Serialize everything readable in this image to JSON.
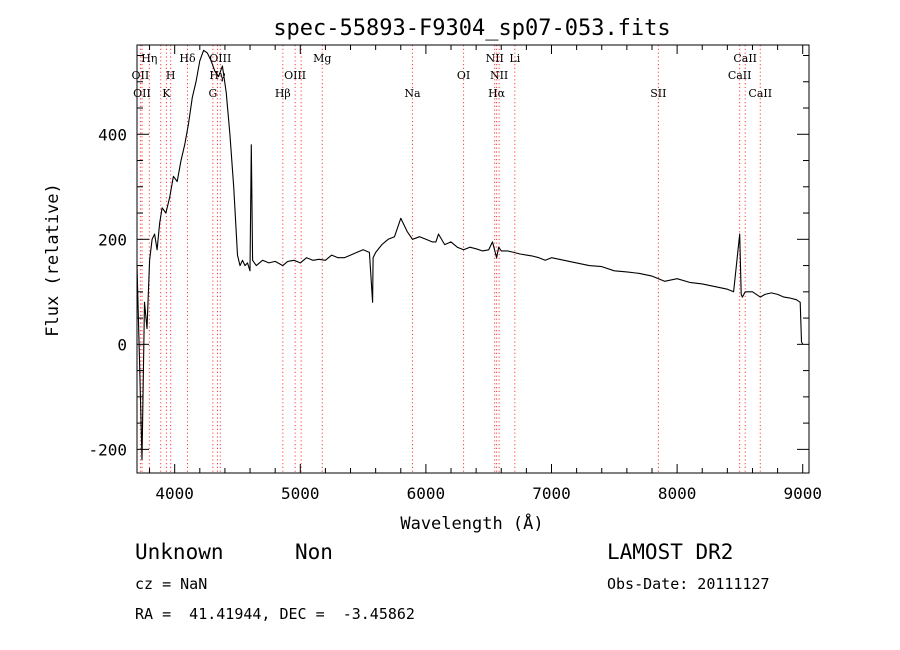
{
  "chart_data": {
    "type": "line",
    "title": "spec-55893-F9304_sp07-053.fits",
    "xlabel": "Wavelength (Å)",
    "ylabel": "Flux (relative)",
    "xlim": [
      3700,
      9050
    ],
    "ylim": [
      -245,
      570
    ],
    "x_ticks": [
      4000,
      5000,
      6000,
      7000,
      8000,
      9000
    ],
    "y_ticks": [
      -200,
      0,
      200,
      400
    ],
    "x_minor_step": 200,
    "y_minor_step": 50,
    "grid": false,
    "series": [
      {
        "color": "#000000",
        "x": [
          3700,
          3720,
          3740,
          3760,
          3780,
          3800,
          3820,
          3840,
          3860,
          3880,
          3900,
          3930,
          3960,
          3990,
          4020,
          4050,
          4080,
          4110,
          4140,
          4170,
          4200,
          4230,
          4260,
          4290,
          4320,
          4350,
          4380,
          4410,
          4440,
          4470,
          4500,
          4520,
          4540,
          4560,
          4580,
          4600,
          4610,
          4620,
          4650,
          4700,
          4750,
          4800,
          4861,
          4900,
          4950,
          5000,
          5050,
          5100,
          5150,
          5200,
          5250,
          5300,
          5350,
          5400,
          5450,
          5500,
          5550,
          5576,
          5580,
          5600,
          5650,
          5700,
          5750,
          5800,
          5850,
          5893,
          5950,
          6000,
          6050,
          6080,
          6100,
          6150,
          6200,
          6250,
          6300,
          6350,
          6400,
          6450,
          6500,
          6530,
          6563,
          6580,
          6600,
          6650,
          6700,
          6750,
          6800,
          6850,
          6900,
          6950,
          7000,
          7100,
          7200,
          7300,
          7400,
          7500,
          7600,
          7700,
          7800,
          7900,
          8000,
          8100,
          8200,
          8300,
          8400,
          8450,
          8498,
          8510,
          8520,
          8542,
          8600,
          8662,
          8700,
          8750,
          8800,
          8850,
          8900,
          8950,
          8980,
          8990,
          9000
        ],
        "y": [
          150,
          -30,
          -220,
          80,
          30,
          160,
          200,
          210,
          180,
          230,
          260,
          250,
          280,
          320,
          310,
          350,
          380,
          420,
          470,
          500,
          540,
          560,
          555,
          540,
          520,
          510,
          530,
          480,
          400,
          300,
          170,
          150,
          160,
          150,
          155,
          140,
          380,
          160,
          150,
          160,
          155,
          158,
          150,
          158,
          160,
          155,
          165,
          160,
          162,
          160,
          170,
          165,
          165,
          170,
          175,
          180,
          175,
          80,
          165,
          175,
          190,
          200,
          205,
          240,
          215,
          200,
          205,
          200,
          195,
          195,
          210,
          190,
          195,
          185,
          180,
          185,
          182,
          178,
          180,
          195,
          165,
          185,
          178,
          178,
          175,
          172,
          170,
          168,
          165,
          160,
          165,
          160,
          155,
          150,
          148,
          140,
          138,
          135,
          130,
          120,
          125,
          118,
          115,
          110,
          105,
          100,
          210,
          95,
          90,
          100,
          100,
          90,
          95,
          98,
          95,
          90,
          88,
          85,
          80,
          5,
          0
        ]
      }
    ],
    "annotations": {
      "line_color": "#ff3b3b",
      "lines": [
        {
          "x": 3727,
          "label": "OII",
          "row": 2
        },
        {
          "x": 3740,
          "label": "OII",
          "row": 3
        },
        {
          "x": 3798,
          "label": "Hη",
          "row": 1
        },
        {
          "x": 3889,
          "label": "",
          "row": 0
        },
        {
          "x": 3934,
          "label": "K",
          "row": 3
        },
        {
          "x": 3968,
          "label": "H",
          "row": 2
        },
        {
          "x": 4102,
          "label": "Hδ",
          "row": 1
        },
        {
          "x": 4304,
          "label": "G",
          "row": 3
        },
        {
          "x": 4341,
          "label": "Hγ",
          "row": 2
        },
        {
          "x": 4363,
          "label": "OIII",
          "row": 1
        },
        {
          "x": 4861,
          "label": "Hβ",
          "row": 3
        },
        {
          "x": 4959,
          "label": "OIII",
          "row": 2
        },
        {
          "x": 5007,
          "label": "",
          "row": 0
        },
        {
          "x": 5175,
          "label": "Mg",
          "row": 1
        },
        {
          "x": 5893,
          "label": "Na",
          "row": 3
        },
        {
          "x": 6300,
          "label": "OI",
          "row": 2
        },
        {
          "x": 6548,
          "label": "NII",
          "row": 1
        },
        {
          "x": 6563,
          "label": "Hα",
          "row": 3
        },
        {
          "x": 6583,
          "label": "NII",
          "row": 2
        },
        {
          "x": 6708,
          "label": "Li",
          "row": 1
        },
        {
          "x": 7851,
          "label": "SII",
          "row": 3
        },
        {
          "x": 8498,
          "label": "CaII",
          "row": 2
        },
        {
          "x": 8542,
          "label": "CaII",
          "row": 1
        },
        {
          "x": 8662,
          "label": "CaII",
          "row": 3
        }
      ]
    }
  },
  "info": {
    "class": "Unknown",
    "subclass": "Non",
    "survey": "LAMOST DR2",
    "cz": "cz = NaN",
    "obs_date": "Obs-Date: 20111127",
    "coords": "RA =  41.41944, DEC =  -3.45862"
  }
}
